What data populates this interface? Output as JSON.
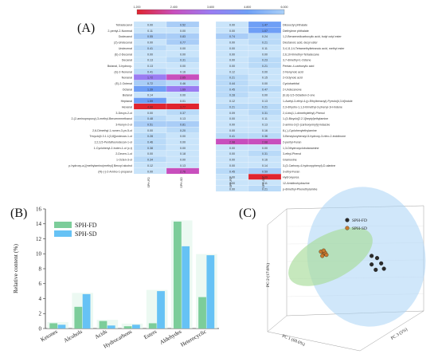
{
  "panels": {
    "a_label": "(A)",
    "b_label": "(B)",
    "c_label": "(C)"
  },
  "colors": {
    "spf_fd": "#7ccd9a",
    "sph_sd": "#66c2f5",
    "ellipse_green": "#a8dc9a",
    "ellipse_blue": "#a9d4f5"
  },
  "heatmap": {
    "scale_ticks": [
      "1.200",
      "2.400",
      "3.600",
      "4.800",
      "6.000"
    ],
    "scale_colors": [
      "#e0242e",
      "#c84fbd",
      "#9a7cf2",
      "#6f9ff6",
      "#a9d0f8"
    ],
    "columns": [
      "SPH-FD",
      "SPH-SD",
      "SPH-FD",
      "SPH-SD"
    ],
    "left_rows": [
      {
        "name": "Tetradecanol",
        "v1": "0.00",
        "v2": "0.52"
      },
      {
        "name": "2-pentyl-2-Nonenal",
        "v1": "0.11",
        "v2": "0.00"
      },
      {
        "name": "Dodecanol",
        "v1": "0.55",
        "v2": "0.83"
      },
      {
        "name": "(Z)-Undecenal",
        "v1": "0.00",
        "v2": "0.77"
      },
      {
        "name": "Undecenal",
        "v1": "0.41",
        "v2": "0.00"
      },
      {
        "name": "(E)-2-Decenal",
        "v1": "0.00",
        "v2": "0.00"
      },
      {
        "name": "Decanal",
        "v1": "0.13",
        "v2": "0.31"
      },
      {
        "name": "Butanal, 3-hydroxy-",
        "v1": "0.13",
        "v2": "0.00"
      },
      {
        "name": "(E)-2-Nonenal",
        "v1": "0.41",
        "v2": "0.16"
      },
      {
        "name": "Nonanal",
        "v1": "1.72",
        "v2": "2.65"
      },
      {
        "name": "(E)-2-Octenal",
        "v1": "0.72",
        "v2": "0.46"
      },
      {
        "name": "Octanal",
        "v1": "1.39",
        "v2": "1.69"
      },
      {
        "name": "Butanal",
        "v1": "0.14",
        "v2": "0.00"
      },
      {
        "name": "Heptanal",
        "v1": "1.59",
        "v2": "0.01"
      },
      {
        "name": "Hexanal",
        "v1": "4.88",
        "v2": "3.77"
      },
      {
        "name": "3-Decyn-2-ol",
        "v1": "0.00",
        "v2": "0.37"
      },
      {
        "name": "2-(2-aminopropoxy)-3-methyl-Benzenemethanol",
        "v1": "0.48",
        "v2": "0.13"
      },
      {
        "name": "3-Nonyn-2-ol",
        "v1": "0.51",
        "v2": "0.81"
      },
      {
        "name": "2,6-Dimethyl-1-nonen-3-yn-5-ol",
        "v1": "0.00",
        "v2": "0.20"
      },
      {
        "name": "Tricyclo[4.3.1.1(3,8)]undecan-1-ol",
        "v1": "0.28",
        "v2": "0.00"
      },
      {
        "name": "2,2,3,5-Pentafluorodecan-1-ol",
        "v1": "0.46",
        "v2": "0.00"
      },
      {
        "name": "1-Cyclohexyl-2-buten-1-ol (c,t)",
        "v1": "0.38",
        "v2": "0.00"
      },
      {
        "name": "2-Decen-1-ol",
        "v1": "0.00",
        "v2": "0.18"
      },
      {
        "name": "1-Octen-3-ol",
        "v1": "0.34",
        "v2": "0.00"
      },
      {
        "name": "p-hydroxy-a-[(methylamino)methyl] Benzyl alcohol",
        "v1": "0.12",
        "v2": "0.13"
      },
      {
        "name": "(R)-(-)-2-Amino-1-propanol",
        "v1": "0.00",
        "v2": "2.76"
      }
    ],
    "right_rows": [
      {
        "name": "Diisooctyl phthalate",
        "v1": "0.00",
        "v2": "1.47"
      },
      {
        "name": "Diethylene phthalate",
        "v1": "0.00",
        "v2": "1.07"
      },
      {
        "name": "1,2-Benzenedicarboxylic acid, butyl octyl ester",
        "v1": "0.74",
        "v2": "0.24"
      },
      {
        "name": "Dioctanoic acid, decyl ester",
        "v1": "0.00",
        "v2": "0.21"
      },
      {
        "name": "3,4,11,14-Tetramethyltetranoic acid, methyl ester",
        "v1": "0.00",
        "v2": "0.11"
      },
      {
        "name": "2,6,10-trimethyl-Tetradecane",
        "v1": "0.00",
        "v2": "0.00"
      },
      {
        "name": "3,7-dimethyl-1-Octene",
        "v1": "0.00",
        "v2": "0.23"
      },
      {
        "name": "Pentan-4-carboxylic acid",
        "v1": "0.00",
        "v2": "0.21"
      },
      {
        "name": "2-Nonynoic acid",
        "v1": "0.12",
        "v2": "0.00"
      },
      {
        "name": "2-Octynoic acid",
        "v1": "0.21",
        "v2": "0.15"
      },
      {
        "name": "Cyclobarbital",
        "v1": "0.44",
        "v2": "0.00"
      },
      {
        "name": "2-Undecanone",
        "v1": "0.45",
        "v2": "0.47"
      },
      {
        "name": "(E,E)-3,5-Octadien-2-one",
        "v1": "0.28",
        "v2": "0.00"
      },
      {
        "name": "1-Acetyl-3-ethyl-4-(p-Ethylbenzoyl)-Pyrrolo[4,3-b]indole",
        "v1": "0.12",
        "v2": "0.13"
      },
      {
        "name": "2,3-dihydro-1,1,3-trimethyl-3-phenyl-1H-Indene",
        "v1": "0.21",
        "v2": "0.21"
      },
      {
        "name": "2,4-bis(1,1-dimethylethyl)-Phenol",
        "v1": "0.09",
        "v2": "0.31"
      },
      {
        "name": "1-(3-Bicyclo[2.2.1]heptyl)ethylamine",
        "v1": "0.00",
        "v2": "0.11"
      },
      {
        "name": "2-amino-3-[2-(carboxyvinyl)]-indazole",
        "v1": "0.00",
        "v2": "0.13"
      },
      {
        "name": "8-(-)-Cyclohexylethylamine",
        "v1": "0.00",
        "v2": "0.16"
      },
      {
        "name": "3-Benzyloxybenzyl-5-hydroxy-3-nitro-2-indolinone",
        "v1": "0.41",
        "v2": "0.36"
      },
      {
        "name": "2-pentyl-Furan",
        "v1": "2.98",
        "v2": "2.68"
      },
      {
        "name": "1,3-Dihydrocyclobutanamine",
        "v1": "0.00",
        "v2": "0.00"
      },
      {
        "name": "3-ethyl-Phenol",
        "v1": "0.00",
        "v2": "0.31"
      },
      {
        "name": "Gramoxine",
        "v1": "0.00",
        "v2": "0.16"
      },
      {
        "name": "3-(3-Carboxy-4-hydroxyphenyl)-D-alanine",
        "v1": "0.00",
        "v2": "0.14"
      },
      {
        "name": "3-ethyl-Furan",
        "v1": "0.45",
        "v2": "0.59"
      },
      {
        "name": "Hydroxyurea",
        "v1": "0.00",
        "v2": "5.09"
      },
      {
        "name": "12-Amidinohydrazine",
        "v1": "0.00",
        "v2": "0.11"
      },
      {
        "name": "p-dimethyl-Phenethylamine",
        "v1": "0.00",
        "v2": "0.21"
      }
    ]
  },
  "chart_data": [
    {
      "type": "bar",
      "title": "",
      "xlabel": "",
      "ylabel": "Relative content (%)",
      "ylim": [
        0,
        16
      ],
      "yticks": [
        "0",
        "2",
        "4",
        "6",
        "8",
        "10",
        "12",
        "14",
        "16"
      ],
      "categories": [
        "Ketones",
        "Alcohols",
        "Acids",
        "Hydrocarbons",
        "Esters",
        "Aldehydes",
        "Heterocyclic"
      ],
      "series": [
        {
          "name": "SPH-FD",
          "values": [
            0.7,
            2.9,
            1.0,
            0.3,
            0.7,
            14.3,
            4.2
          ]
        },
        {
          "name": "SPH-SD",
          "values": [
            0.5,
            4.6,
            0.4,
            0.5,
            5.0,
            11.0,
            9.8
          ]
        }
      ],
      "legend": "top-left"
    },
    {
      "type": "scatter",
      "title": "",
      "xlabel": "PC 1 (69.6%)",
      "ylabel": "PC 2 (17.6%)",
      "zlabel": "PC 3 (5%)",
      "series": [
        {
          "name": "SPH-FD",
          "points": [
            [
              0.62,
              0.44
            ],
            [
              0.66,
              0.46
            ],
            [
              0.62,
              0.52
            ],
            [
              0.69,
              0.51
            ],
            [
              0.71,
              0.56
            ],
            [
              0.65,
              0.57
            ]
          ]
        },
        {
          "name": "SPH-SD",
          "points": [
            [
              0.25,
              0.4
            ],
            [
              0.27,
              0.42
            ],
            [
              0.26,
              0.44
            ],
            [
              0.28,
              0.41
            ],
            [
              0.29,
              0.43
            ],
            [
              0.27,
              0.39
            ]
          ]
        }
      ],
      "legend": "top-left"
    }
  ]
}
